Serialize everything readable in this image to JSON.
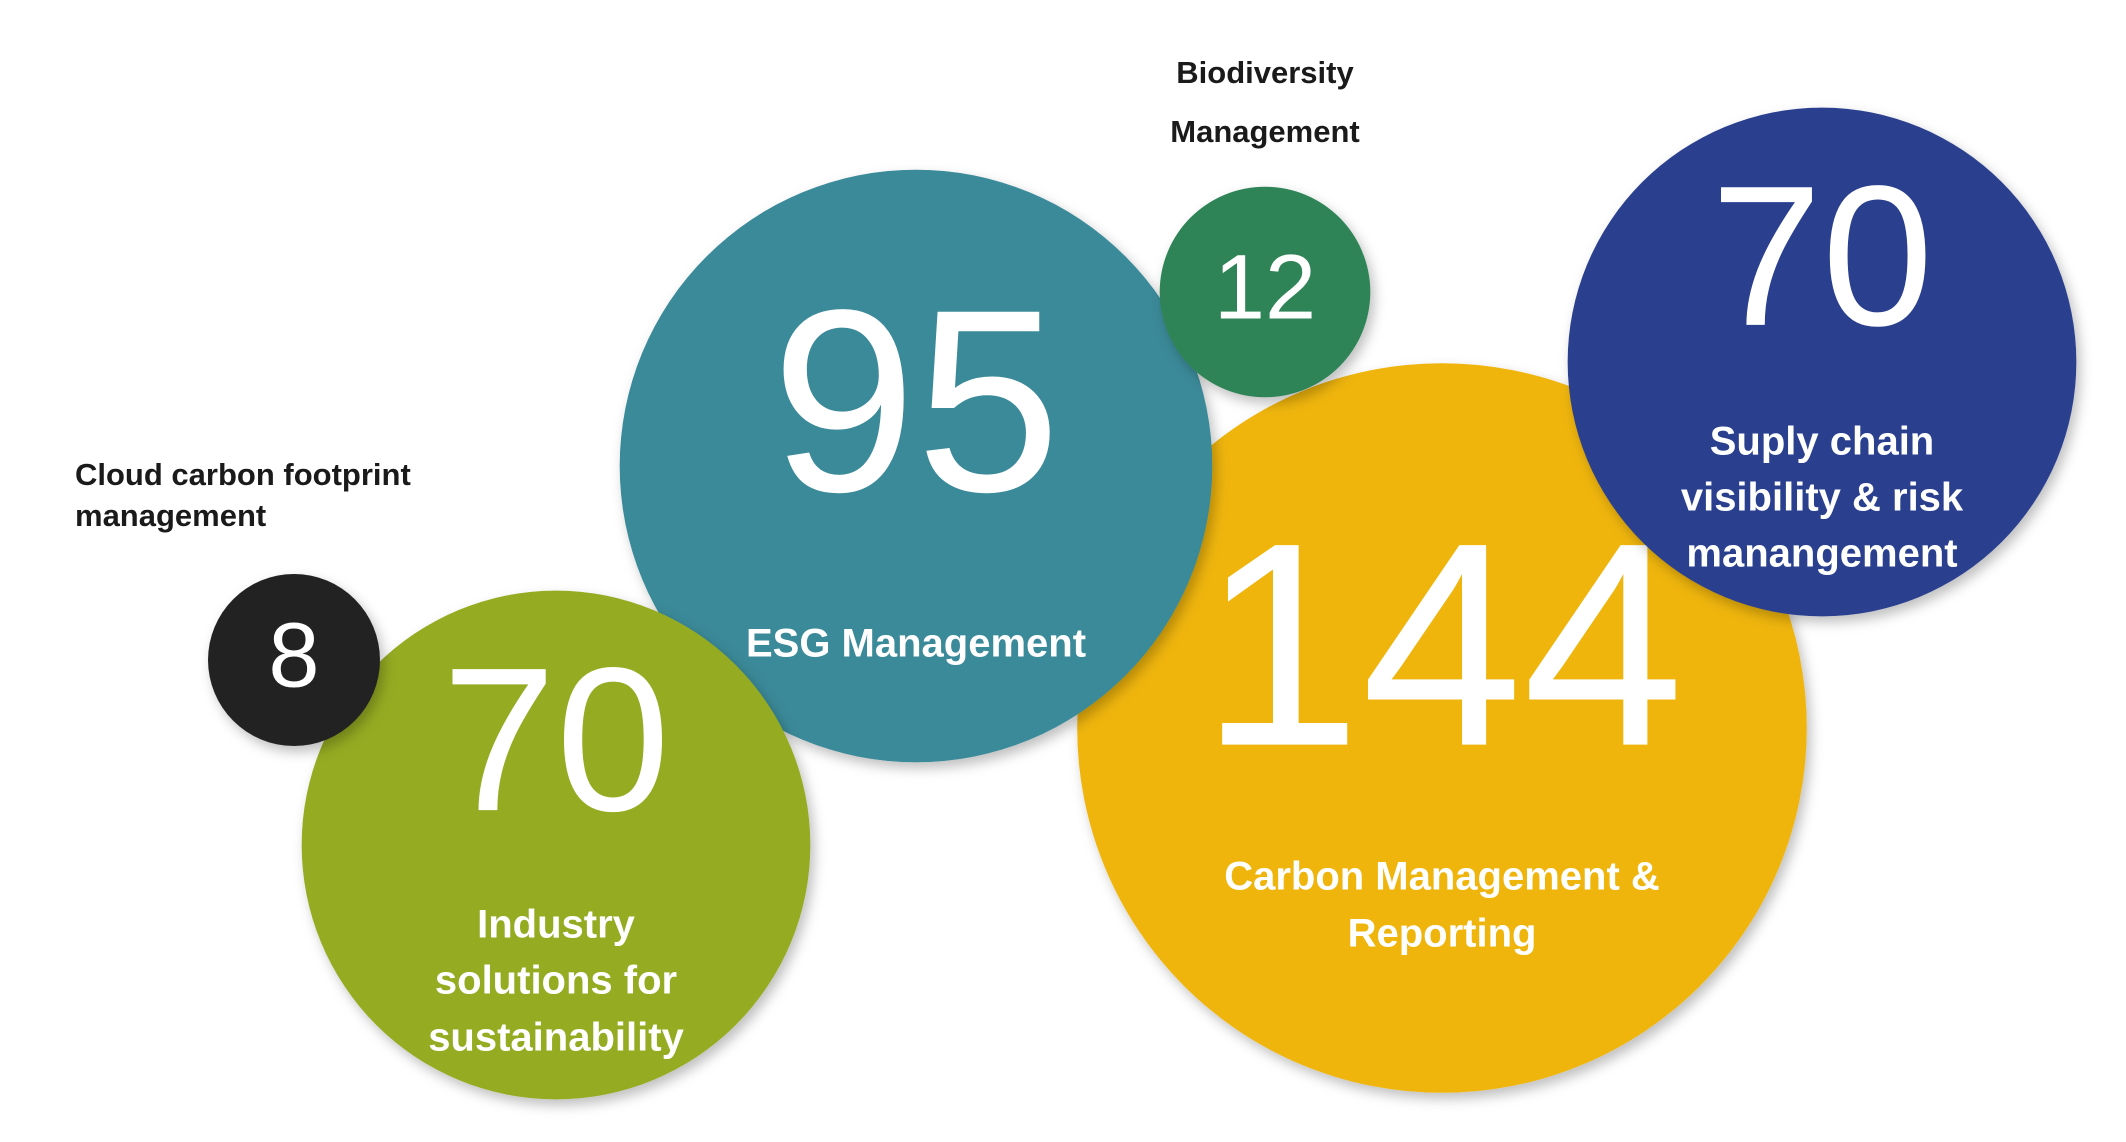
{
  "chart_data": {
    "type": "bubble",
    "bubbles": [
      {
        "label": [
          "Carbon Management &",
          "Reporting"
        ],
        "value": 144,
        "color": "#efb50f"
      },
      {
        "label": [
          "ESG Management"
        ],
        "value": 95,
        "color": "#3a8a99"
      },
      {
        "label": [
          "Industry",
          "solutions for",
          "sustainability"
        ],
        "value": 70,
        "color": "#95ab22"
      },
      {
        "label": [
          "Cloud carbon footprint",
          "management"
        ],
        "value": 8,
        "color": "#222222"
      },
      {
        "label": [
          "Biodiversity",
          "Management"
        ],
        "value": 12,
        "color": "#2e8456"
      },
      {
        "label": [
          "Suply chain",
          "visibility & risk",
          "manangement"
        ],
        "value": 70,
        "color": "#2c3f8f"
      }
    ]
  }
}
